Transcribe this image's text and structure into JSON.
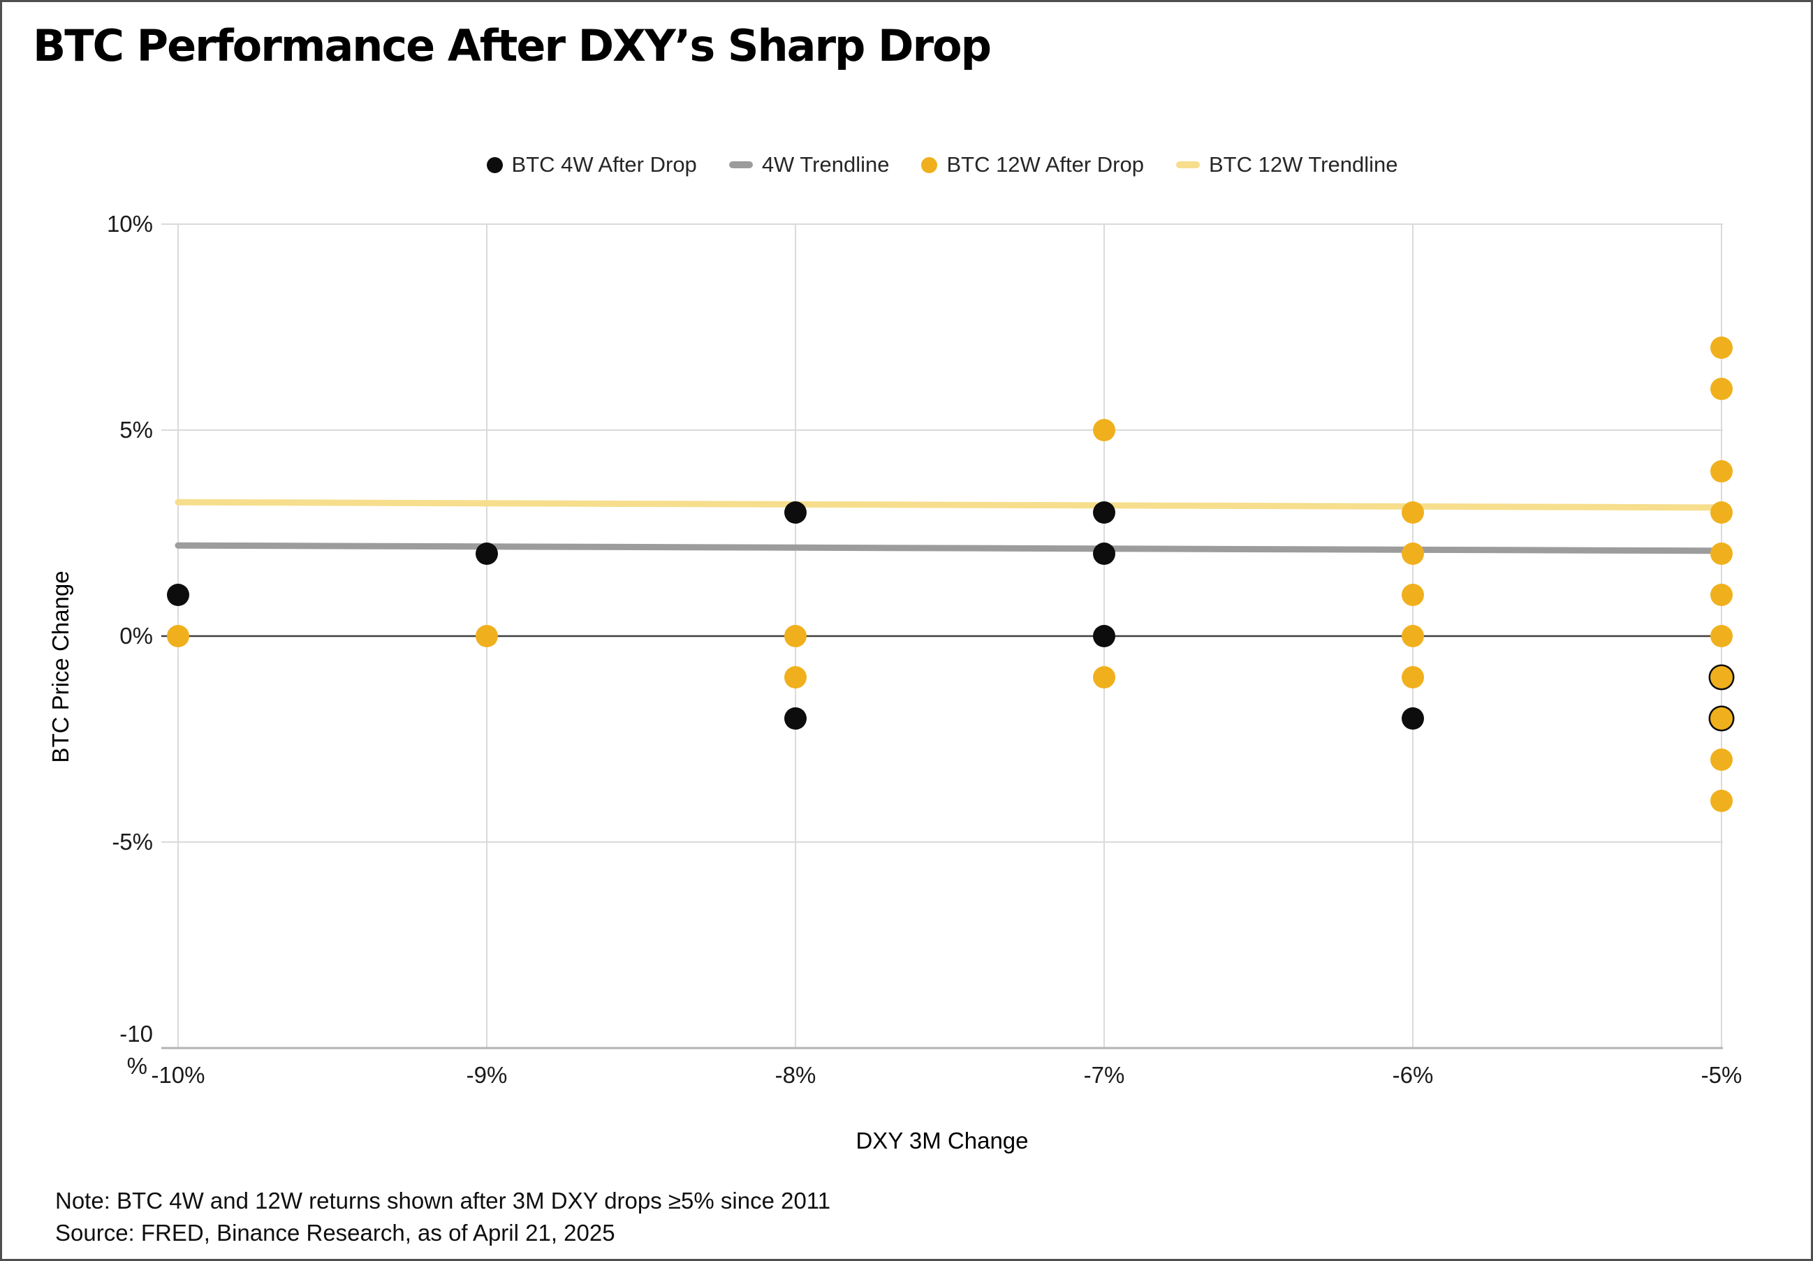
{
  "title": "BTC Performance After DXY’s Sharp Drop",
  "note": "Note: BTC 4W and 12W returns shown after 3M DXY drops ≥5% since 2011",
  "source": "Source: FRED, Binance Research, as of April 21, 2025",
  "colors": {
    "black_series": "#0d0d0d",
    "yellow_series": "#F0B01D",
    "gray_trend": "#9C9C9C",
    "pale_yellow_trend": "#F6DE8D",
    "gridline_light": "#DADADA",
    "zero_line": "#3F3F3F",
    "bottom_axis": "#B3B3B3",
    "tick_text": "#1a1a1a",
    "frame_border": "#4f4f4f"
  },
  "legend": [
    {
      "label": "BTC 4W After Drop",
      "marker": "circle",
      "color": "#0d0d0d"
    },
    {
      "label": "4W Trendline",
      "marker": "dash",
      "color": "#9C9C9C"
    },
    {
      "label": "BTC 12W After Drop",
      "marker": "circle",
      "color": "#F0B01D"
    },
    {
      "label": "BTC 12W Trendline",
      "marker": "dash",
      "color": "#F6DE8D"
    }
  ],
  "axes": {
    "x_title": "DXY 3M Change",
    "y_title": "BTC Price Change",
    "x_ticks": [
      "-10%",
      "-9%",
      "-8%",
      "-7%",
      "-6%",
      "-5%"
    ],
    "y_ticks": [
      {
        "value": 10,
        "label": "10%"
      },
      {
        "value": 5,
        "label": "5%"
      },
      {
        "value": 0,
        "label": "0%"
      },
      {
        "value": -5,
        "label": "-5%"
      },
      {
        "value": -10,
        "label": "-10\n%"
      }
    ]
  },
  "chart_data": {
    "type": "scatter",
    "title": "BTC Performance After DXY’s Sharp Drop",
    "xlabel": "DXY 3M Change",
    "ylabel": "BTC Price Change",
    "x_categories": [
      -10,
      -9,
      -8,
      -7,
      -6,
      -5
    ],
    "ylim": [
      -10,
      10
    ],
    "grid": true,
    "legend_position": "top",
    "y_gridlines": [
      {
        "v": 10,
        "style": "light"
      },
      {
        "v": 5,
        "style": "light"
      },
      {
        "v": 0,
        "style": "zero"
      },
      {
        "v": -5,
        "style": "light"
      },
      {
        "v": -10,
        "style": "axis"
      }
    ],
    "series": [
      {
        "name": "BTC 4W After Drop",
        "kind": "scatter",
        "color": "#0d0d0d",
        "points": [
          {
            "x": -10,
            "y": 1
          },
          {
            "x": -9,
            "y": 2
          },
          {
            "x": -8,
            "y": 3
          },
          {
            "x": -8,
            "y": -2
          },
          {
            "x": -7,
            "y": 3
          },
          {
            "x": -7,
            "y": 2
          },
          {
            "x": -7,
            "y": 0
          },
          {
            "x": -6,
            "y": -2
          },
          {
            "x": -5,
            "y": -1,
            "behind": true
          },
          {
            "x": -5,
            "y": -2,
            "behind": true
          }
        ]
      },
      {
        "name": "4W Trendline",
        "kind": "line",
        "color": "#9C9C9C",
        "x": [
          -10,
          -5
        ],
        "y": [
          2.2,
          2.07
        ]
      },
      {
        "name": "BTC 12W After Drop",
        "kind": "scatter",
        "color": "#F0B01D",
        "points": [
          {
            "x": -10,
            "y": 0
          },
          {
            "x": -9,
            "y": 0
          },
          {
            "x": -8,
            "y": 0
          },
          {
            "x": -8,
            "y": -1
          },
          {
            "x": -7,
            "y": 5
          },
          {
            "x": -7,
            "y": -1
          },
          {
            "x": -6,
            "y": 3
          },
          {
            "x": -6,
            "y": 2
          },
          {
            "x": -6,
            "y": 1
          },
          {
            "x": -6,
            "y": 0
          },
          {
            "x": -6,
            "y": -1
          },
          {
            "x": -5,
            "y": 7
          },
          {
            "x": -5,
            "y": 6
          },
          {
            "x": -5,
            "y": 4
          },
          {
            "x": -5,
            "y": 3
          },
          {
            "x": -5,
            "y": 2
          },
          {
            "x": -5,
            "y": 1
          },
          {
            "x": -5,
            "y": 0
          },
          {
            "x": -5,
            "y": -1
          },
          {
            "x": -5,
            "y": -2
          },
          {
            "x": -5,
            "y": -3
          },
          {
            "x": -5,
            "y": -4
          }
        ]
      },
      {
        "name": "BTC 12W Trendline",
        "kind": "line",
        "color": "#F6DE8D",
        "x": [
          -10,
          -5
        ],
        "y": [
          3.25,
          3.12
        ]
      }
    ]
  }
}
